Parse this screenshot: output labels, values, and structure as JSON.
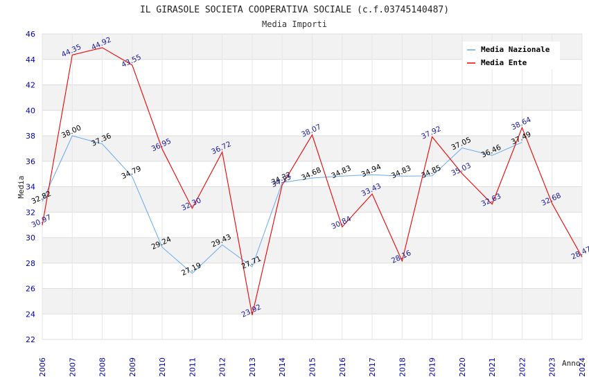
{
  "chart_data": {
    "type": "line",
    "title": "IL GIRASOLE SOCIETA COOPERATIVA SOCIALE (c.f.03745140487)",
    "subtitle": "Media Importi",
    "xlabel": "Anno",
    "ylabel": "Media",
    "ylim": [
      22,
      46
    ],
    "yticks": [
      "22",
      "24",
      "26",
      "28",
      "30",
      "32",
      "34",
      "36",
      "38",
      "40",
      "42",
      "44",
      "46"
    ],
    "categories": [
      "2006",
      "2007",
      "2008",
      "2009",
      "2010",
      "2011",
      "2012",
      "2013",
      "2014",
      "2015",
      "2016",
      "2017",
      "2018",
      "2019",
      "2020",
      "2021",
      "2022",
      "2023",
      "2024"
    ],
    "legend_position": "top-right",
    "series": [
      {
        "name": "Media Nazionale",
        "color": "#66aaee",
        "values": [
          32.82,
          38.0,
          37.36,
          34.79,
          29.24,
          27.19,
          29.43,
          27.71,
          34.32,
          34.68,
          34.83,
          34.94,
          34.83,
          34.85,
          37.05,
          36.46,
          37.49,
          null,
          null
        ],
        "labels": [
          "32.82",
          "38.00",
          "37.36",
          "34.79",
          "29.24",
          "27.19",
          "29.43",
          "27.71",
          "34.32",
          "34.68",
          "34.83",
          "34.94",
          "34.83",
          "34.85",
          "37.05",
          "36.46",
          "37.49",
          null,
          null
        ]
      },
      {
        "name": "Media Ente",
        "color": "#ee0000",
        "values": [
          30.97,
          44.35,
          44.92,
          43.55,
          36.95,
          32.3,
          36.72,
          23.92,
          34.13,
          38.07,
          30.84,
          33.43,
          28.16,
          37.92,
          35.03,
          32.63,
          38.64,
          32.68,
          28.47
        ],
        "labels": [
          "30.97",
          "44.35",
          "44.92",
          "43.55",
          "36.95",
          "32.30",
          "36.72",
          "23.92",
          "34.13",
          "38.07",
          "30.84",
          "33.43",
          "28.16",
          "37.92",
          "35.03",
          "32.63",
          "38.64",
          "32.68",
          "28.47"
        ]
      }
    ]
  }
}
